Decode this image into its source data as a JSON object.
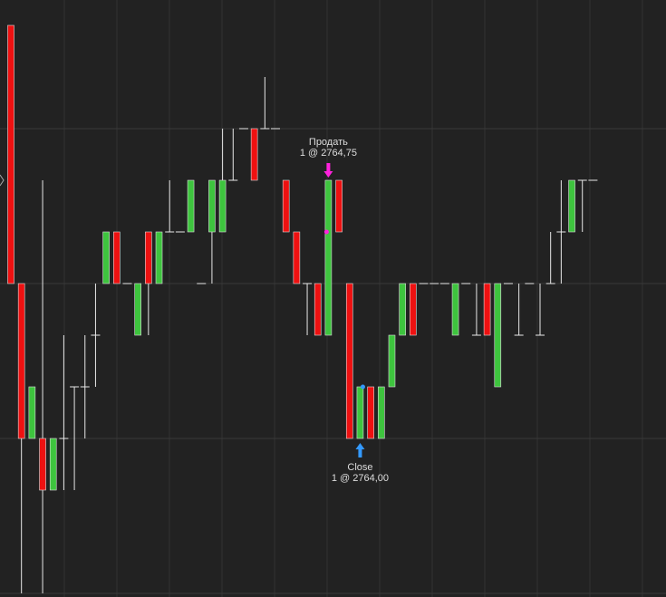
{
  "chart_data": {
    "type": "candlestick",
    "ylim": [
      2763,
      2765.875
    ],
    "yticks": [
      2763,
      2763.75,
      2764.5,
      2765.25
    ],
    "grid": true,
    "up_color": "#3ec43e",
    "down_color": "#ee1111",
    "wick_color": "#e8e8e8",
    "open": [
      2765.75,
      2764.5,
      2763.75,
      2763.75,
      2763.5,
      2763.75,
      2764,
      2764,
      2764.25,
      2764.5,
      2764.75,
      2764.5,
      2764.25,
      2764.75,
      2764.5,
      2764.75,
      2764.75,
      2764.75,
      2764.5,
      2764.75,
      2764.75,
      2765,
      2765.25,
      2765.25,
      2765.25,
      2765.25,
      2765,
      2764.75,
      2764.5,
      2764.5,
      2764.25,
      2765,
      2764.5,
      2763.75,
      2764,
      2763.75,
      2764,
      2764.25,
      2764.5,
      2764.5,
      2764.5,
      2764.5,
      2764.25,
      2764.5,
      2764.25,
      2764.5,
      2764,
      2764.5,
      2764.25,
      2764.5,
      2764.25,
      2764.5,
      2764.75,
      2764.75,
      2765,
      2765
    ],
    "high": [
      2765.75,
      2764.5,
      2764,
      2765,
      2763.75,
      2764.25,
      2764,
      2764.25,
      2764.5,
      2764.75,
      2764.75,
      2764.5,
      2764.5,
      2764.75,
      2764.75,
      2765,
      2764.75,
      2765,
      2764.5,
      2765,
      2765.25,
      2765.25,
      2765.25,
      2765.25,
      2765.5,
      2765.25,
      2765,
      2764.75,
      2764.5,
      2764.5,
      2765,
      2765,
      2764.5,
      2764,
      2764,
      2764,
      2764.25,
      2764.5,
      2764.5,
      2764.5,
      2764.5,
      2764.5,
      2764.5,
      2764.5,
      2764.5,
      2764.5,
      2764.5,
      2764.5,
      2764.5,
      2764.5,
      2764.5,
      2764.75,
      2765,
      2765,
      2765,
      2765
    ],
    "low": [
      2764.5,
      2763,
      2763.75,
      2763,
      2763.5,
      2763.5,
      2763.5,
      2763.75,
      2764,
      2764.5,
      2764.5,
      2764.5,
      2764.25,
      2764.25,
      2764.5,
      2764.75,
      2764.75,
      2764.75,
      2764.5,
      2764.5,
      2764.75,
      2765,
      2765.25,
      2765,
      2765.25,
      2765.25,
      2764.75,
      2764.5,
      2764.25,
      2764.25,
      2764.25,
      2764.75,
      2763.75,
      2763.75,
      2763.75,
      2763.75,
      2764,
      2764.25,
      2764.25,
      2764.5,
      2764.5,
      2764.5,
      2764.25,
      2764.5,
      2764.25,
      2764.25,
      2764,
      2764.5,
      2764.25,
      2764.5,
      2764.25,
      2764.5,
      2764.5,
      2764.75,
      2764.75,
      2765
    ],
    "close": [
      2764.5,
      2763.75,
      2764,
      2763.5,
      2763.75,
      2763.75,
      2764,
      2764,
      2764.25,
      2764.75,
      2764.5,
      2764.5,
      2764.5,
      2764.5,
      2764.75,
      2764.75,
      2764.75,
      2765,
      2764.5,
      2765,
      2765,
      2765,
      2765.25,
      2765,
      2765.25,
      2765.25,
      2764.75,
      2764.5,
      2764.5,
      2764.25,
      2765,
      2764.75,
      2763.75,
      2764,
      2763.75,
      2764,
      2764.25,
      2764.5,
      2764.25,
      2764.5,
      2764.5,
      2764.5,
      2764.5,
      2764.5,
      2764.25,
      2764.25,
      2764.5,
      2764.5,
      2764.25,
      2764.5,
      2764.25,
      2764.5,
      2764.75,
      2765,
      2765,
      2765
    ],
    "annotations": [
      {
        "title": "Продать",
        "text": "1 @ 2764,75",
        "candle": 30,
        "price": 2764.75,
        "side": "sell",
        "color": "#ff22dd"
      },
      {
        "title": "Close",
        "text": "1 @ 2764,00",
        "candle": 33,
        "price": 2764,
        "side": "buy",
        "color": "#3399ff"
      }
    ]
  }
}
